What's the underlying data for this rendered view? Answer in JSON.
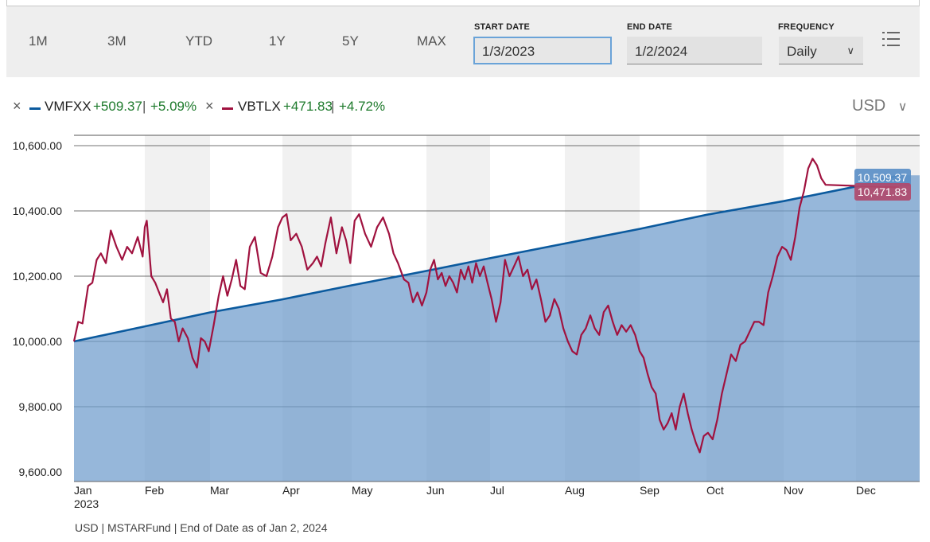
{
  "toolbar": {
    "ranges": [
      "1M",
      "3M",
      "YTD",
      "1Y",
      "5Y",
      "MAX"
    ],
    "start_date": {
      "label": "START DATE",
      "value": "1/3/2023"
    },
    "end_date": {
      "label": "END DATE",
      "value": "1/2/2024"
    },
    "frequency": {
      "label": "FREQUENCY",
      "value": "Daily"
    }
  },
  "legend": [
    {
      "ticker": "VMFXX",
      "change": "+509.37",
      "pct": "+5.09%",
      "color": "#0b5a9e"
    },
    {
      "ticker": "VBTLX",
      "change": "+471.83",
      "pct": "+4.72%",
      "color": "#a0123f"
    }
  ],
  "currency": "USD",
  "footer": "USD | MSTARFund | End of Date as of Jan 2, 2024",
  "chart_data": {
    "type": "line",
    "x_labels": [
      "Jan",
      "Feb",
      "Mar",
      "Apr",
      "May",
      "Jun",
      "Jul",
      "Aug",
      "Sep",
      "Oct",
      "Nov",
      "Dec"
    ],
    "x_sublabel": "2023",
    "y_tick_labels": [
      "10,600.00",
      "10,400.00",
      "10,200.00",
      "10,000.00",
      "9,800.00",
      "9,600.00"
    ],
    "y_ticks": [
      10600,
      10400,
      10200,
      10000,
      9800,
      9600
    ],
    "ylim": [
      9600,
      10600
    ],
    "grid": true,
    "end_labels": [
      "10,509.37",
      "10,471.83"
    ],
    "series": [
      {
        "name": "VMFXX",
        "color": "#0b5a9e",
        "fill": "#6d9bcc",
        "points": [
          [
            0,
            10000
          ],
          [
            1,
            10046
          ],
          [
            2,
            10089
          ],
          [
            3,
            10129
          ],
          [
            4,
            10172
          ],
          [
            5,
            10216
          ],
          [
            6,
            10255
          ],
          [
            7,
            10300
          ],
          [
            8,
            10345
          ],
          [
            9,
            10388
          ],
          [
            10,
            10430
          ],
          [
            11,
            10475
          ],
          [
            11.6,
            10509
          ]
        ]
      },
      {
        "name": "VBTLX",
        "color": "#a0123f",
        "points": [
          [
            0,
            10000
          ],
          [
            0.06,
            10060
          ],
          [
            0.12,
            10055
          ],
          [
            0.2,
            10170
          ],
          [
            0.26,
            10180
          ],
          [
            0.32,
            10250
          ],
          [
            0.38,
            10270
          ],
          [
            0.45,
            10240
          ],
          [
            0.52,
            10340
          ],
          [
            0.6,
            10290
          ],
          [
            0.68,
            10250
          ],
          [
            0.75,
            10290
          ],
          [
            0.82,
            10270
          ],
          [
            0.9,
            10320
          ],
          [
            0.97,
            10260
          ],
          [
            1.0,
            10350
          ],
          [
            1.03,
            10370
          ],
          [
            1.1,
            10200
          ],
          [
            1.16,
            10180
          ],
          [
            1.22,
            10150
          ],
          [
            1.28,
            10120
          ],
          [
            1.34,
            10160
          ],
          [
            1.4,
            10070
          ],
          [
            1.46,
            10060
          ],
          [
            1.52,
            10000
          ],
          [
            1.58,
            10040
          ],
          [
            1.66,
            10010
          ],
          [
            1.73,
            9950
          ],
          [
            1.8,
            9920
          ],
          [
            1.86,
            10010
          ],
          [
            1.92,
            10000
          ],
          [
            1.98,
            9970
          ],
          [
            2.05,
            10050
          ],
          [
            2.12,
            10140
          ],
          [
            2.18,
            10200
          ],
          [
            2.24,
            10140
          ],
          [
            2.3,
            10190
          ],
          [
            2.36,
            10250
          ],
          [
            2.42,
            10170
          ],
          [
            2.48,
            10160
          ],
          [
            2.55,
            10290
          ],
          [
            2.62,
            10320
          ],
          [
            2.7,
            10210
          ],
          [
            2.78,
            10200
          ],
          [
            2.86,
            10260
          ],
          [
            2.94,
            10350
          ],
          [
            3.0,
            10380
          ],
          [
            3.06,
            10390
          ],
          [
            3.12,
            10310
          ],
          [
            3.2,
            10330
          ],
          [
            3.28,
            10290
          ],
          [
            3.36,
            10220
          ],
          [
            3.44,
            10240
          ],
          [
            3.5,
            10260
          ],
          [
            3.56,
            10230
          ],
          [
            3.62,
            10300
          ],
          [
            3.7,
            10380
          ],
          [
            3.78,
            10270
          ],
          [
            3.86,
            10350
          ],
          [
            3.92,
            10310
          ],
          [
            3.98,
            10240
          ],
          [
            4.04,
            10370
          ],
          [
            4.1,
            10390
          ],
          [
            4.18,
            10330
          ],
          [
            4.26,
            10290
          ],
          [
            4.34,
            10350
          ],
          [
            4.42,
            10380
          ],
          [
            4.5,
            10330
          ],
          [
            4.56,
            10270
          ],
          [
            4.62,
            10240
          ],
          [
            4.7,
            10190
          ],
          [
            4.76,
            10180
          ],
          [
            4.82,
            10120
          ],
          [
            4.88,
            10150
          ],
          [
            4.94,
            10110
          ],
          [
            5.0,
            10150
          ],
          [
            5.06,
            10220
          ],
          [
            5.12,
            10250
          ],
          [
            5.18,
            10190
          ],
          [
            5.24,
            10210
          ],
          [
            5.3,
            10170
          ],
          [
            5.36,
            10200
          ],
          [
            5.42,
            10180
          ],
          [
            5.48,
            10150
          ],
          [
            5.54,
            10220
          ],
          [
            5.6,
            10190
          ],
          [
            5.66,
            10230
          ],
          [
            5.72,
            10180
          ],
          [
            5.78,
            10240
          ],
          [
            5.84,
            10200
          ],
          [
            5.9,
            10230
          ],
          [
            5.96,
            10180
          ],
          [
            6.02,
            10130
          ],
          [
            6.08,
            10060
          ],
          [
            6.14,
            10120
          ],
          [
            6.2,
            10250
          ],
          [
            6.26,
            10200
          ],
          [
            6.32,
            10230
          ],
          [
            6.38,
            10260
          ],
          [
            6.44,
            10200
          ],
          [
            6.5,
            10220
          ],
          [
            6.56,
            10160
          ],
          [
            6.62,
            10190
          ],
          [
            6.68,
            10130
          ],
          [
            6.74,
            10060
          ],
          [
            6.8,
            10080
          ],
          [
            6.86,
            10130
          ],
          [
            6.92,
            10100
          ],
          [
            6.98,
            10040
          ],
          [
            7.04,
            10000
          ],
          [
            7.1,
            9970
          ],
          [
            7.16,
            9960
          ],
          [
            7.22,
            10020
          ],
          [
            7.28,
            10040
          ],
          [
            7.34,
            10080
          ],
          [
            7.4,
            10040
          ],
          [
            7.46,
            10020
          ],
          [
            7.52,
            10090
          ],
          [
            7.58,
            10110
          ],
          [
            7.64,
            10060
          ],
          [
            7.7,
            10020
          ],
          [
            7.76,
            10050
          ],
          [
            7.82,
            10030
          ],
          [
            7.88,
            10050
          ],
          [
            7.94,
            10020
          ],
          [
            8.0,
            9970
          ],
          [
            8.06,
            9950
          ],
          [
            8.12,
            9900
          ],
          [
            8.18,
            9860
          ],
          [
            8.24,
            9840
          ],
          [
            8.3,
            9760
          ],
          [
            8.36,
            9730
          ],
          [
            8.42,
            9750
          ],
          [
            8.48,
            9780
          ],
          [
            8.54,
            9730
          ],
          [
            8.6,
            9800
          ],
          [
            8.66,
            9840
          ],
          [
            8.72,
            9780
          ],
          [
            8.78,
            9730
          ],
          [
            8.84,
            9690
          ],
          [
            8.9,
            9660
          ],
          [
            8.96,
            9710
          ],
          [
            9.02,
            9720
          ],
          [
            9.08,
            9700
          ],
          [
            9.14,
            9760
          ],
          [
            9.2,
            9840
          ],
          [
            9.26,
            9900
          ],
          [
            9.32,
            9960
          ],
          [
            9.38,
            9940
          ],
          [
            9.44,
            9990
          ],
          [
            9.5,
            10000
          ],
          [
            9.56,
            10030
          ],
          [
            9.62,
            10060
          ],
          [
            9.68,
            10060
          ],
          [
            9.74,
            10050
          ],
          [
            9.8,
            10150
          ],
          [
            9.86,
            10200
          ],
          [
            9.92,
            10260
          ],
          [
            9.98,
            10290
          ],
          [
            10.04,
            10280
          ],
          [
            10.1,
            10250
          ],
          [
            10.16,
            10320
          ],
          [
            10.22,
            10410
          ],
          [
            10.28,
            10460
          ],
          [
            10.34,
            10530
          ],
          [
            10.4,
            10560
          ],
          [
            10.46,
            10540
          ],
          [
            10.52,
            10500
          ],
          [
            10.58,
            10480
          ],
          [
            11.6,
            10472
          ]
        ]
      }
    ]
  }
}
